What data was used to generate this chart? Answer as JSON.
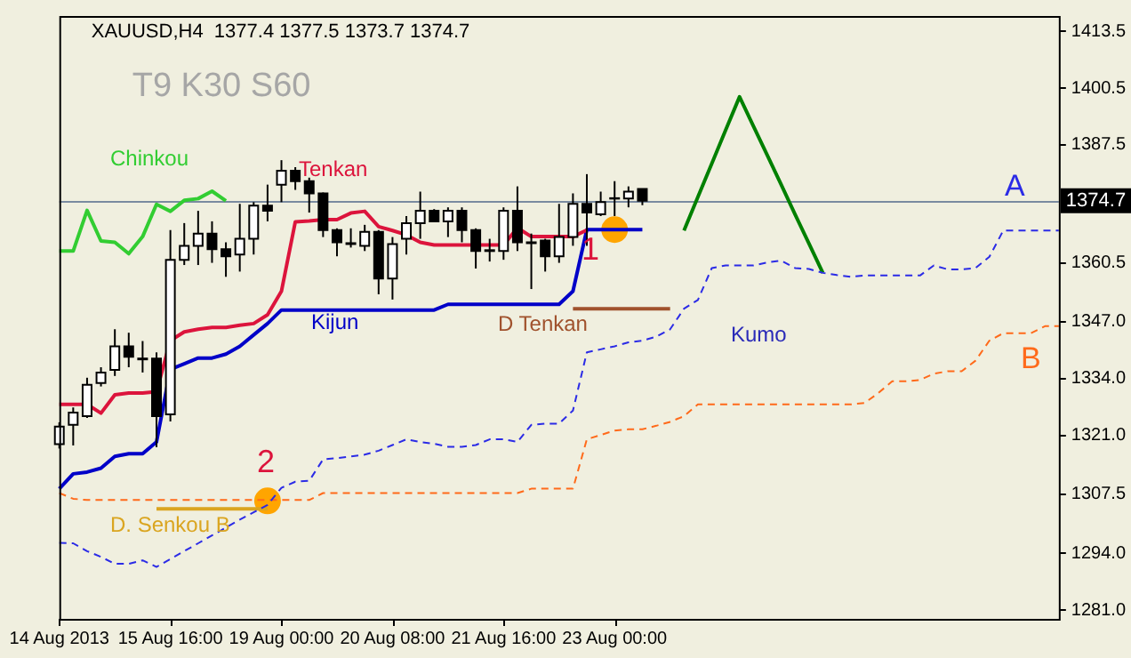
{
  "chart_data": {
    "type": "candlestick",
    "title": "XAUUSD,H4  1377.4 1377.5 1373.7 1374.7",
    "subtitle": "T9 K30 S60",
    "categories": [
      "14 Aug 2013",
      null,
      null,
      null,
      null,
      null,
      null,
      null,
      "15 Aug 16:00",
      null,
      null,
      null,
      null,
      null,
      null,
      null,
      "19 Aug 00:00",
      null,
      null,
      null,
      null,
      null,
      null,
      null,
      "20 Aug 08:00",
      null,
      null,
      null,
      null,
      null,
      null,
      null,
      "21 Aug 16:00",
      null,
      null,
      null,
      null,
      null,
      null,
      null,
      "23 Aug 00:00",
      null,
      null,
      null,
      null,
      null,
      null,
      null,
      null,
      null,
      null,
      null,
      null,
      null,
      null,
      null,
      null,
      null,
      null,
      null,
      null,
      null,
      null,
      null,
      null,
      null,
      null,
      null,
      null,
      null,
      null,
      null,
      null
    ],
    "ohlc": [
      [
        1319,
        1324,
        1318,
        1323
      ],
      [
        1323.4,
        1327.4,
        1318.7,
        1326.2
      ],
      [
        1325.4,
        1334.2,
        1325,
        1332.6
      ],
      [
        1333,
        1336.6,
        1332.2,
        1335.4
      ],
      [
        1336,
        1345.3,
        1334.6,
        1341.4
      ],
      [
        1341.4,
        1344.5,
        1336.6,
        1339
      ],
      [
        1338.6,
        1342.6,
        1335.4,
        1338.4
      ],
      [
        1338.6,
        1340,
        1318.3,
        1325.4
      ],
      [
        1325.8,
        1368,
        1324.2,
        1361.2
      ],
      [
        1361.2,
        1369.6,
        1360,
        1364.4
      ],
      [
        1364.4,
        1372.4,
        1360,
        1367.2
      ],
      [
        1367.2,
        1370,
        1360.5,
        1363.6
      ],
      [
        1363.6,
        1365.2,
        1357.3,
        1362
      ],
      [
        1362.4,
        1374,
        1358.5,
        1366
      ],
      [
        1366,
        1374.4,
        1362.4,
        1373.6
      ],
      [
        1373.6,
        1378.4,
        1370,
        1372.4
      ],
      [
        1378.4,
        1384,
        1374.4,
        1381.6
      ],
      [
        1381.6,
        1382.4,
        1377.2,
        1379.2
      ],
      [
        1379.2,
        1380,
        1372,
        1376.4
      ],
      [
        1376.4,
        1376.6,
        1366.4,
        1368
      ],
      [
        1368,
        1368.4,
        1362,
        1365.2
      ],
      [
        1365,
        1368.4,
        1364,
        1364.8
      ],
      [
        1364.4,
        1369.2,
        1363.2,
        1367.6
      ],
      [
        1367.6,
        1368,
        1353.3,
        1356.9
      ],
      [
        1356.9,
        1366.4,
        1352.1,
        1364.8
      ],
      [
        1366,
        1371.2,
        1362.4,
        1369.6
      ],
      [
        1369.6,
        1376.8,
        1366,
        1372.4
      ],
      [
        1372.4,
        1372.8,
        1370,
        1370
      ],
      [
        1370,
        1373.2,
        1366.4,
        1372.4
      ],
      [
        1372.4,
        1373.2,
        1365.2,
        1368
      ],
      [
        1368,
        1368.4,
        1359.2,
        1363.2
      ],
      [
        1363.4,
        1366,
        1360.8,
        1363.2
      ],
      [
        1363.2,
        1373.2,
        1361.2,
        1372.4
      ],
      [
        1372.4,
        1378,
        1363.2,
        1365.2
      ],
      [
        1365.2,
        1367.2,
        1354.5,
        1365
      ],
      [
        1365.6,
        1366,
        1358.5,
        1362
      ],
      [
        1362,
        1374,
        1360.5,
        1366.4
      ],
      [
        1366.4,
        1376.4,
        1364.4,
        1374
      ],
      [
        1374,
        1380.8,
        1364.4,
        1372
      ],
      [
        1371.6,
        1376.8,
        1371.2,
        1374.4
      ],
      [
        1375.2,
        1379.2,
        1371.2,
        1375.3
      ],
      [
        1375.2,
        1378,
        1373.2,
        1376.8
      ],
      [
        1377.4,
        1377.5,
        1373.7,
        1374.7
      ],
      null,
      null,
      null,
      null,
      null,
      null,
      null,
      null,
      null,
      null,
      null,
      null,
      null,
      null,
      null,
      null,
      null,
      null,
      null,
      null,
      null,
      null,
      null,
      null,
      null,
      null,
      null,
      null,
      null,
      null
    ],
    "series": [
      {
        "type": "line",
        "name": "Tenkan",
        "color": "#dc143c",
        "values": [
          1328.1,
          1328.1,
          1328.1,
          1326.1,
          1330.3,
          1330.7,
          1330.7,
          1331.0,
          1342.7,
          1344.7,
          1345.3,
          1345.7,
          1345.7,
          1346.2,
          1346.6,
          1348.6,
          1354.0,
          1369.9,
          1370.1,
          1370.4,
          1370.4,
          1371.9,
          1372.3,
          1368.8,
          1367.9,
          1366.9,
          1365.2,
          1364.6,
          1364.6,
          1364.6,
          1364.6,
          1364.6,
          1364.6,
          1368.5,
          1366.5,
          1366.5,
          1366.5,
          1366.5,
          1368.0,
          null,
          null,
          null,
          null,
          null,
          null,
          null,
          null,
          null,
          null,
          null,
          null,
          null,
          null,
          null,
          null,
          null,
          null,
          null,
          null,
          null,
          null,
          null,
          null,
          null,
          null,
          null,
          null,
          null,
          null,
          null,
          null,
          null,
          null
        ]
      },
      {
        "type": "line",
        "name": "Kijun",
        "color": "#0000c8",
        "values": [
          1308.8,
          1312.2,
          1312.6,
          1313.5,
          1316.2,
          1316.8,
          1316.8,
          1319.5,
          1336.1,
          1337.4,
          1338.7,
          1338.7,
          1339.6,
          1341.4,
          1344.0,
          1346.6,
          1349.7,
          1349.7,
          1349.7,
          1349.7,
          1349.7,
          1349.7,
          1349.7,
          1349.7,
          1349.7,
          1349.7,
          1349.7,
          1349.7,
          1351.0,
          1351.0,
          1351.0,
          1351.0,
          1351.0,
          1351.0,
          1351.0,
          1351.0,
          1351.0,
          1354.0,
          1368.1,
          1368.1,
          1368.1,
          1368.1,
          1368.1,
          null,
          null,
          null,
          null,
          null,
          null,
          null,
          null,
          null,
          null,
          null,
          null,
          null,
          null,
          null,
          null,
          null,
          null,
          null,
          null,
          null,
          null,
          null,
          null,
          null,
          null,
          null,
          null,
          null,
          null
        ]
      },
      {
        "type": "line",
        "name": "Chinkou",
        "color": "#32cd32",
        "values": [
          1363.2,
          1363.2,
          1372.5,
          1365.5,
          1365.2,
          1362.6,
          1366.5,
          1373.9,
          1372.3,
          1374.8,
          1375.2,
          1376.9,
          1374.7,
          null,
          null,
          null,
          null,
          null,
          null,
          null,
          null,
          null,
          null,
          null,
          null,
          null,
          null,
          null,
          null,
          null,
          null,
          null,
          null,
          null,
          null,
          null,
          null,
          null,
          null,
          null,
          null,
          null,
          null,
          null,
          null,
          null,
          null,
          null,
          null,
          null,
          null,
          null,
          null,
          null,
          null,
          null,
          null,
          null,
          null,
          null,
          null,
          null,
          null,
          null,
          null,
          null,
          null,
          null,
          null,
          null,
          null,
          null,
          null
        ]
      },
      {
        "type": "line",
        "name": "A",
        "color": "#2b2be6",
        "line_style": "dashed",
        "values": [
          1296.4,
          1296.3,
          1294.5,
          1293.2,
          1291.6,
          1291.6,
          1292.4,
          1290.9,
          1292.7,
          1294.5,
          1296.3,
          1298.1,
          1299.9,
          1301.7,
          1303.4,
          1305.1,
          1309.0,
          1310.4,
          1310.6,
          1315.5,
          1315.8,
          1316.2,
          1316.6,
          1317.5,
          1318.8,
          1320.1,
          1319.5,
          1319.1,
          1318.4,
          1318.4,
          1318.8,
          1320.1,
          1320.1,
          1319.5,
          1323.4,
          1323.7,
          1323.7,
          1326.7,
          1340.0,
          1340.7,
          1341.4,
          1342.3,
          1342.7,
          1343.6,
          1345.3,
          1350.0,
          1352.0,
          1359.3,
          1359.9,
          1359.9,
          1359.9,
          1360.6,
          1361.0,
          1359.3,
          1359.1,
          1358.2,
          1357.7,
          1357.3,
          1357.6,
          1357.6,
          1357.6,
          1357.6,
          1357.6,
          1359.9,
          1359.0,
          1359.0,
          1359.3,
          1361.9,
          1367.9,
          1367.9,
          1367.9,
          1367.9,
          1367.9
        ]
      },
      {
        "type": "line",
        "name": "B",
        "color": "#ff6a1a",
        "line_style": "dashed",
        "values": [
          1307.8,
          1306.5,
          1306.2,
          1306.2,
          1306.2,
          1306.2,
          1306.2,
          1306.2,
          1306.2,
          1306.2,
          1306.2,
          1306.2,
          1306.2,
          1306.2,
          1306.2,
          1306.2,
          1306.2,
          1306.2,
          1306.2,
          1307.8,
          1307.8,
          1307.8,
          1307.8,
          1307.8,
          1307.8,
          1307.8,
          1307.8,
          1307.8,
          1307.8,
          1307.8,
          1307.8,
          1307.8,
          1307.8,
          1307.8,
          1308.8,
          1308.8,
          1308.8,
          1308.8,
          1320.1,
          1321.1,
          1322.1,
          1322.4,
          1322.4,
          1323.2,
          1324.1,
          1325.4,
          1328.1,
          1328.1,
          1328.1,
          1328.1,
          1328.1,
          1328.1,
          1328.1,
          1328.1,
          1328.1,
          1328.1,
          1328.1,
          1328.1,
          1328.4,
          1330.7,
          1333.4,
          1333.4,
          1333.7,
          1335.1,
          1335.7,
          1335.7,
          1338.1,
          1342.7,
          1344.4,
          1344.4,
          1344.4,
          1346.0,
          1346.0
        ]
      },
      {
        "type": "line",
        "name": "D Tenkan",
        "color": "#a0522d",
        "values": [
          null,
          null,
          null,
          null,
          null,
          null,
          null,
          null,
          null,
          null,
          null,
          null,
          null,
          null,
          null,
          null,
          null,
          null,
          null,
          null,
          null,
          null,
          null,
          null,
          null,
          null,
          null,
          null,
          null,
          null,
          null,
          null,
          null,
          null,
          null,
          null,
          null,
          1350.0,
          1350.0,
          1350.0,
          1350.0,
          1350.0,
          1350.0,
          1350.0,
          1350.0,
          null,
          null,
          null,
          null,
          null,
          null,
          null,
          null,
          null,
          null,
          null,
          null,
          null,
          null,
          null,
          null,
          null,
          null,
          null,
          null,
          null,
          null,
          null,
          null,
          null,
          null,
          null,
          null
        ]
      },
      {
        "type": "line",
        "name": "D. Senkou B",
        "color": "#daa520",
        "values": [
          null,
          null,
          null,
          null,
          null,
          null,
          null,
          1304.2,
          1304.2,
          1304.2,
          1304.2,
          1304.2,
          1304.2,
          1304.2,
          1304.2,
          1304.2,
          null,
          null,
          null,
          null,
          null,
          null,
          null,
          null,
          null,
          null,
          null,
          null,
          null,
          null,
          null,
          null,
          null,
          null,
          null,
          null,
          null,
          null,
          null,
          null,
          null,
          null,
          null,
          null,
          null,
          null,
          null,
          null,
          null,
          null,
          null,
          null,
          null,
          null,
          null,
          null,
          null,
          null,
          null,
          null,
          null,
          null,
          null,
          null,
          null,
          null,
          null,
          null,
          null,
          null,
          null,
          null,
          null
        ]
      },
      {
        "type": "line",
        "color": "#008000",
        "values": [
          null,
          null,
          null,
          null,
          null,
          null,
          null,
          null,
          null,
          null,
          null,
          null,
          null,
          null,
          null,
          null,
          null,
          null,
          null,
          null,
          null,
          null,
          null,
          null,
          null,
          null,
          null,
          null,
          null,
          null,
          null,
          null,
          null,
          null,
          null,
          null,
          null,
          null,
          null,
          null,
          null,
          null,
          null,
          null,
          null,
          1367.9,
          1375.6,
          1383.2,
          1390.9,
          1398.5,
          1391.8,
          1385.1,
          1378.4,
          1371.6,
          1364.9,
          1358.2,
          null,
          null,
          null,
          null,
          null,
          null,
          null,
          null,
          null,
          null,
          null,
          null,
          null,
          null,
          null,
          null,
          null
        ]
      },
      {
        "type": "scatter",
        "color": "#ffa500",
        "marker": "circle",
        "values": [
          null,
          null,
          null,
          null,
          null,
          null,
          null,
          null,
          null,
          null,
          null,
          null,
          null,
          null,
          null,
          1306.0,
          null,
          null,
          null,
          null,
          null,
          null,
          null,
          null,
          null,
          null,
          null,
          null,
          null,
          null,
          null,
          null,
          null,
          null,
          null,
          null,
          null,
          null,
          null,
          null,
          1368.1,
          null,
          null,
          null,
          null,
          null,
          null,
          null,
          null,
          null,
          null,
          null,
          null,
          null,
          null,
          null,
          null,
          null,
          null,
          null,
          null,
          null,
          null,
          null,
          null,
          null,
          null,
          null,
          null,
          null,
          null,
          null,
          null
        ]
      }
    ],
    "ylim": [
      1279,
      1417
    ],
    "yticks": [
      1413.5,
      1400.5,
      1387.5,
      1360.5,
      {
        "value": 1347,
        "label": "1347.0"
      },
      {
        "value": 1334,
        "label": "1334.0"
      },
      {
        "value": 1321,
        "label": "1321.0"
      },
      1307.5,
      {
        "value": 1294,
        "label": "1294.0"
      },
      {
        "value": 1281,
        "label": "1281.0"
      }
    ],
    "ref_lines": [
      {
        "axis": "y",
        "value": 1374.7,
        "label": "1374.7",
        "color": "#7a8ba0"
      }
    ],
    "annotations": [
      "Kumo",
      "1",
      "2"
    ],
    "grid": false,
    "legend": false
  }
}
